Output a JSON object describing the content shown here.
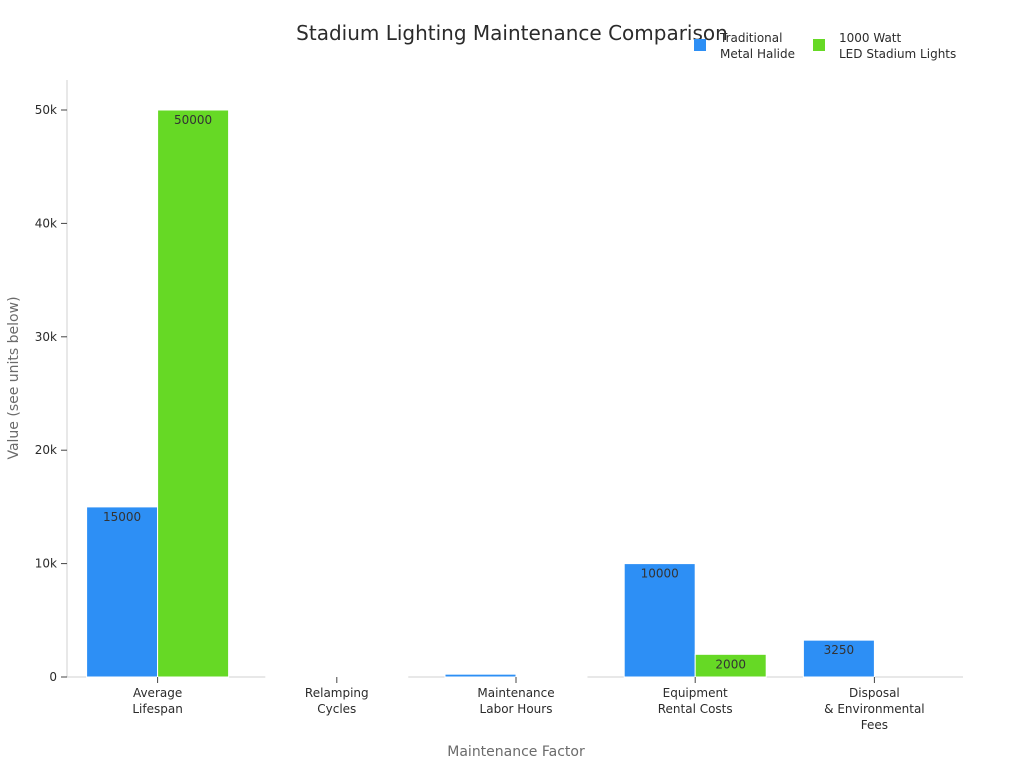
{
  "chart_data": {
    "type": "bar",
    "title": "Stadium Lighting Maintenance Comparison",
    "xlabel": "Maintenance Factor",
    "ylabel": "Value (see units below)",
    "categories": [
      [
        "Average",
        "Lifespan"
      ],
      [
        "Relamping",
        "Cycles"
      ],
      [
        "Maintenance",
        "Labor Hours"
      ],
      [
        "Equipment",
        "Rental Costs"
      ],
      [
        "Disposal",
        "& Environmental",
        "Fees"
      ]
    ],
    "series": [
      {
        "name": [
          "Traditional",
          "Metal Halide"
        ],
        "color": "#2d8ff5",
        "values": [
          15000,
          4,
          250,
          10000,
          3250
        ],
        "labels": [
          "15000",
          null,
          null,
          "10000",
          "3250"
        ]
      },
      {
        "name": [
          "1000 Watt",
          "LED Stadium Lights"
        ],
        "color": "#66d925",
        "values": [
          50000,
          1,
          50,
          2000,
          0
        ],
        "labels": [
          "50000",
          null,
          null,
          "2000",
          null
        ]
      }
    ],
    "ylim": [
      0,
      52500
    ],
    "yticks": [
      0,
      10000,
      20000,
      30000,
      40000,
      50000
    ],
    "ytick_labels": [
      "0",
      "10k",
      "20k",
      "30k",
      "40k",
      "50k"
    ],
    "grid": false,
    "legend_position": "top-right"
  }
}
